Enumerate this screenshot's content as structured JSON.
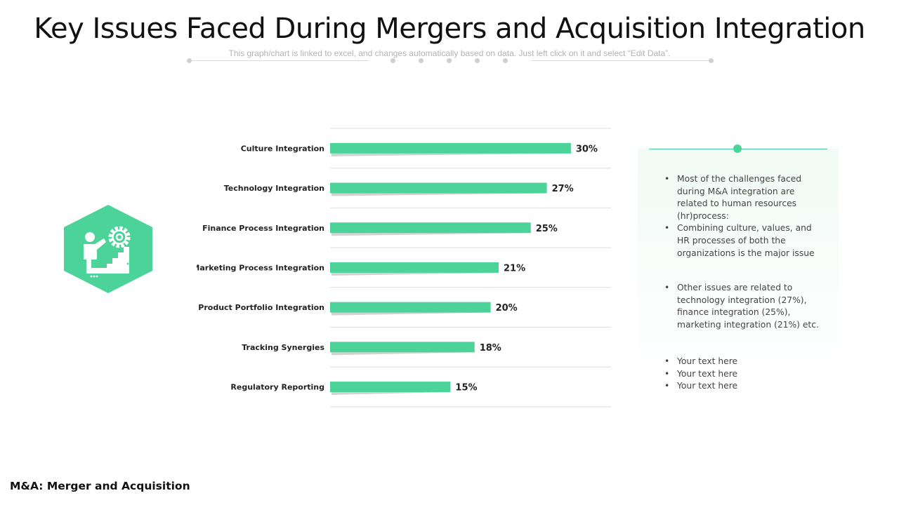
{
  "slide": {
    "title": "Key Issues Faced During Mergers and Acquisition Integration",
    "subtitle": "This graph/chart is linked to excel, and changes automatically based on data. Just left click on it and select “Edit Data”.",
    "footer": "M&A: Merger and Acquisition"
  },
  "colors": {
    "accent": "#4cd39a",
    "shadow": "#d2d2d2",
    "grid": "#dedede"
  },
  "icon": {
    "name": "climber-with-gear-icon"
  },
  "chart_data": {
    "type": "bar",
    "orientation": "horizontal",
    "title": "",
    "xlabel": "",
    "ylabel": "",
    "categories": [
      "Culture Integration",
      "Technology Integration",
      "Finance Process Integration",
      "Marketing Process Integration",
      "Product Portfolio Integration",
      "Tracking Synergies",
      "Regulatory Reporting"
    ],
    "values": [
      30,
      27,
      25,
      21,
      20,
      18,
      15
    ],
    "value_labels": [
      "30%",
      "27%",
      "25%",
      "21%",
      "20%",
      "18%",
      "15%"
    ],
    "xlim": [
      0,
      35
    ],
    "grid": true
  },
  "panel": {
    "group1": [
      "Most of the challenges faced during M&A integration are related to human resources (hr)process:",
      "Combining culture, values, and HR processes of both the organizations is the major issue"
    ],
    "group2": [
      "Other issues are related to technology integration (27%), finance integration (25%), marketing integration (21%) etc."
    ],
    "group3": [
      "Your text here",
      "Your text here",
      "Your text here"
    ]
  }
}
